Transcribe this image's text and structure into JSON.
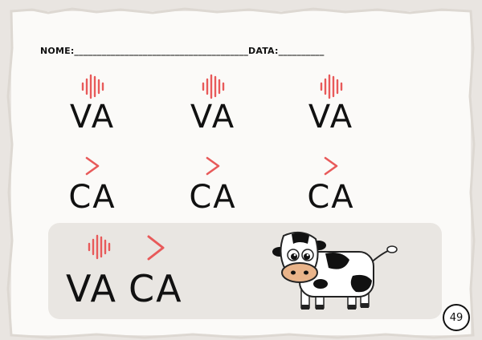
{
  "header": {
    "name_label": "NOME:______________________________________DATA:__________"
  },
  "rows": [
    {
      "syllable": "VA",
      "icon": "vibration-wave-icon"
    },
    {
      "syllable": "CA",
      "icon": "chevron-right-icon"
    }
  ],
  "grid_labels": [
    "VA",
    "VA",
    "VA",
    "CA",
    "CA",
    "CA"
  ],
  "combined": {
    "word1": "VA",
    "word2": "CA"
  },
  "illustration": "cow-icon",
  "page_number": "49",
  "colors": {
    "accent": "#e85a5a",
    "text": "#111111",
    "box": "#e9e6e2"
  }
}
